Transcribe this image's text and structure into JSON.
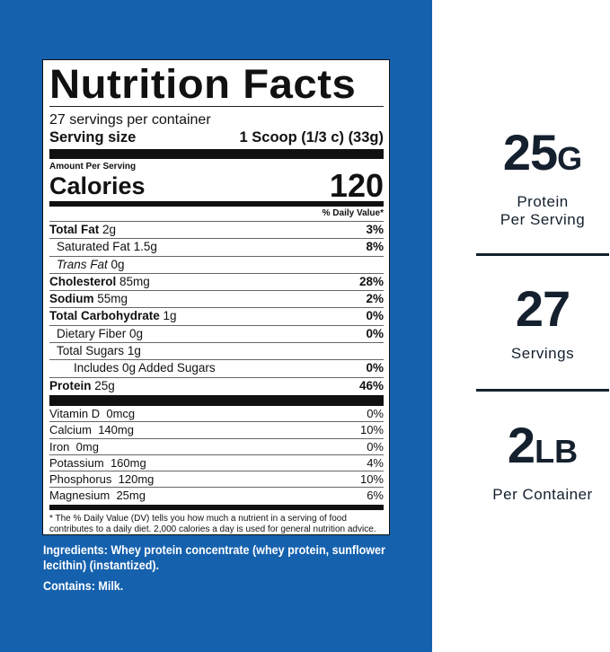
{
  "label": {
    "title": "Nutrition Facts",
    "servings_per_container": "27 servings per container",
    "serving_size_label": "Serving size",
    "serving_size_value": "1 Scoop (1/3 c) (33g)",
    "amount_per_serving": "Amount Per Serving",
    "calories_label": "Calories",
    "calories_value": "120",
    "dv_header": "% Daily Value*",
    "nutrients": [
      {
        "name": "Total Fat",
        "amount": "2g",
        "dv": "3%"
      },
      {
        "name": "Saturated Fat",
        "amount": "1.5g",
        "dv": "8%"
      },
      {
        "name": "Trans Fat",
        "amount": "0g",
        "dv": ""
      },
      {
        "name": "Cholesterol",
        "amount": "85mg",
        "dv": "28%"
      },
      {
        "name": "Sodium",
        "amount": "55mg",
        "dv": "2%"
      },
      {
        "name": "Total Carbohydrate",
        "amount": "1g",
        "dv": "0%"
      },
      {
        "name": "Dietary Fiber",
        "amount": "0g",
        "dv": "0%"
      },
      {
        "name": "Total Sugars",
        "amount": "1g",
        "dv": ""
      },
      {
        "name": "Includes 0g Added Sugars",
        "amount": "",
        "dv": "0%"
      },
      {
        "name": "Protein",
        "amount": "25g",
        "dv": "46%"
      }
    ],
    "vitamins": [
      {
        "name": "Vitamin D",
        "amount": "0mcg",
        "dv": "0%"
      },
      {
        "name": "Calcium",
        "amount": "140mg",
        "dv": "10%"
      },
      {
        "name": "Iron",
        "amount": "0mg",
        "dv": "0%"
      },
      {
        "name": "Potassium",
        "amount": "160mg",
        "dv": "4%"
      },
      {
        "name": "Phosphorus",
        "amount": "120mg",
        "dv": "10%"
      },
      {
        "name": "Magnesium",
        "amount": "25mg",
        "dv": "6%"
      }
    ],
    "footnote": "* The % Daily Value (DV) tells you how much a nutrient in a serving of food contributes to a daily diet. 2,000 calories a day is used for general nutrition advice."
  },
  "ingredients": "Ingredients: Whey protein concentrate (whey protein, sunflower lecithin) (instantized).",
  "contains": "Contains: Milk.",
  "stats": [
    {
      "number": "25",
      "unit": "G",
      "caption1": "Protein",
      "caption2": "Per Serving"
    },
    {
      "number": "27",
      "unit": "",
      "caption1": "Servings",
      "caption2": ""
    },
    {
      "number": "2",
      "unit": "LB",
      "caption1": "Per Container",
      "caption2": ""
    }
  ],
  "colors": {
    "panel_blue": "#1561ae",
    "stat_text": "#14202e"
  }
}
